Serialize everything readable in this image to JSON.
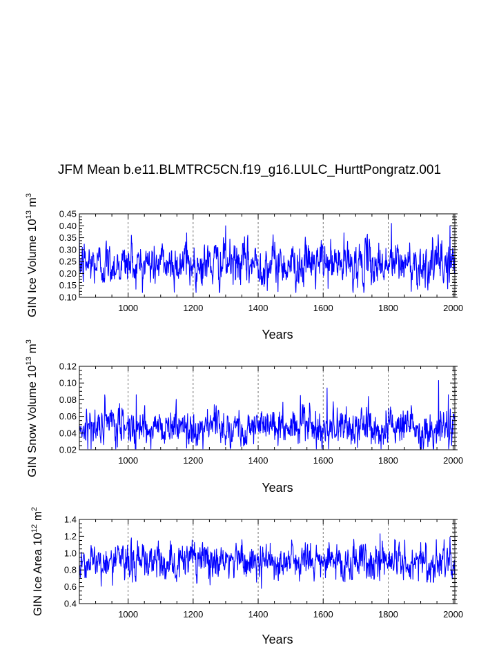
{
  "title": "JFM Mean b.e11.BLMTRC5CN.f19_g16.LULC_HurttPongratz.001",
  "colors": {
    "series": "#0000ff",
    "axis": "#000000",
    "grid": "#555555"
  },
  "chart_data": [
    {
      "type": "line",
      "name": "GIN Ice Volume",
      "ylabel_parts": [
        "GIN Ice Volume 10",
        "13",
        " m",
        "3"
      ],
      "xlabel": "Years",
      "xlim": [
        850,
        2005
      ],
      "ylim": [
        0.1,
        0.45
      ],
      "xticks": [
        1000,
        1200,
        1400,
        1600,
        1800,
        2000
      ],
      "yticks": [
        0.1,
        0.15,
        0.2,
        0.25,
        0.3,
        0.35,
        0.4,
        0.45
      ],
      "ytick_labels": [
        "0.10",
        "0.15",
        "0.20",
        "0.25",
        "0.30",
        "0.35",
        "0.40",
        "0.45"
      ],
      "series_mean": 0.24,
      "series_sd": 0.045,
      "series_min": 0.12,
      "series_max": 0.4,
      "peaks": [
        [
          1300,
          0.4
        ],
        [
          1810,
          0.41
        ],
        [
          1990,
          0.4
        ],
        [
          1180,
          0.37
        ],
        [
          1010,
          0.36
        ]
      ]
    },
    {
      "type": "line",
      "name": "GIN Snow Volume",
      "ylabel_parts": [
        "GIN Snow Volume 10",
        "13",
        " m",
        "3"
      ],
      "xlabel": "Years",
      "xlim": [
        850,
        2005
      ],
      "ylim": [
        0.02,
        0.12
      ],
      "xticks": [
        1000,
        1200,
        1400,
        1600,
        1800,
        2000
      ],
      "yticks": [
        0.02,
        0.04,
        0.06,
        0.08,
        0.1,
        0.12
      ],
      "ytick_labels": [
        "0.02",
        "0.04",
        "0.06",
        "0.08",
        "0.10",
        "0.12"
      ],
      "series_mean": 0.048,
      "series_sd": 0.011,
      "series_min": 0.021,
      "series_max": 0.103,
      "peaks": [
        [
          1955,
          0.103
        ],
        [
          1612,
          0.094
        ],
        [
          1025,
          0.086
        ],
        [
          1530,
          0.085
        ],
        [
          1985,
          0.086
        ],
        [
          1180,
          0.022
        ]
      ]
    },
    {
      "type": "line",
      "name": "GIN Ice Area",
      "ylabel_parts": [
        "GIN Ice Area 10",
        "12",
        " m",
        "2"
      ],
      "xlabel": "Years",
      "xlim": [
        850,
        2005
      ],
      "ylim": [
        0.4,
        1.4
      ],
      "xticks": [
        1000,
        1200,
        1400,
        1600,
        1800,
        2000
      ],
      "yticks": [
        0.4,
        0.6,
        0.8,
        1.0,
        1.2,
        1.4
      ],
      "ytick_labels": [
        "0.4",
        "0.6",
        "0.8",
        "1.0",
        "1.2",
        "1.4"
      ],
      "series_mean": 0.9,
      "series_sd": 0.11,
      "series_min": 0.58,
      "series_max": 1.23,
      "peaks": [
        [
          1775,
          1.23
        ],
        [
          1010,
          1.18
        ],
        [
          1990,
          1.19
        ],
        [
          1350,
          1.16
        ],
        [
          1410,
          0.58
        ]
      ]
    }
  ]
}
